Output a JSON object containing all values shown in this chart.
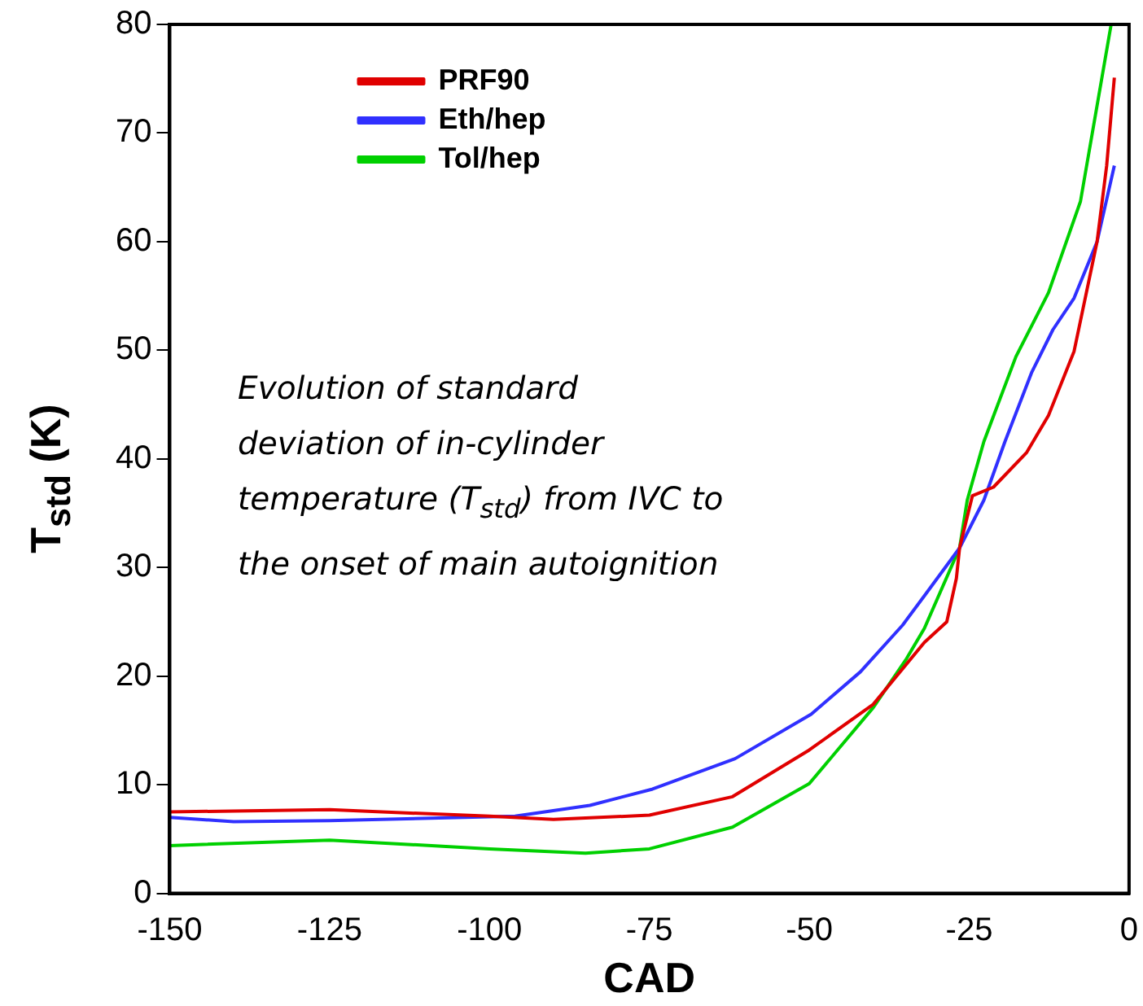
{
  "chart_data": {
    "type": "line",
    "xlabel": "CAD",
    "ylabel": "T$_{std}$ (K)",
    "xlim": [
      -150,
      0
    ],
    "xticks": [
      -150,
      -125,
      -100,
      -75,
      -50,
      -25,
      0
    ],
    "ylim": [
      0,
      80
    ],
    "yticks": [
      0,
      10,
      20,
      30,
      40,
      50,
      60,
      70,
      80
    ],
    "grid": false,
    "legend": "top left",
    "marker": "none",
    "line_style": "solid",
    "annotations": [
      "Evolution of standard deviation of in-cylinder temperature (T$_{std}$) from IVC to the onset of main autoignition"
    ],
    "series": [
      {
        "name": "PRF90",
        "color": "#e00000",
        "x": [
          -150,
          -125,
          -100,
          -90,
          -75,
          -62,
          -50,
          -40,
          -32,
          -28.5,
          -27,
          -26.5,
          -24.5,
          -21.2,
          -16,
          -12.6,
          -8.6,
          -5,
          -3.5,
          -2.3
        ],
        "values": [
          7.5,
          7.7,
          7.1,
          6.8,
          7.2,
          8.9,
          13.2,
          17.4,
          23.1,
          25,
          29,
          31.8,
          36.6,
          37.4,
          40.6,
          44,
          49.9,
          60,
          67,
          75.1
        ]
      },
      {
        "name": "Eth/hep",
        "color": "#3030ff",
        "x": [
          -150,
          -140,
          -125,
          -96,
          -84.3,
          -74.5,
          -61.6,
          -49.7,
          -42,
          -35.4,
          -32,
          -26.5,
          -22.7,
          -19.4,
          -15.2,
          -11.9,
          -8.6,
          -5,
          -2.3
        ],
        "values": [
          7,
          6.6,
          6.7,
          7.1,
          8.1,
          9.6,
          12.4,
          16.5,
          20.4,
          24.7,
          27.4,
          31.8,
          36.2,
          41.6,
          48,
          51.9,
          54.8,
          60,
          67
        ]
      },
      {
        "name": "Tol/hep",
        "color": "#00d000",
        "x": [
          -150,
          -125,
          -100,
          -85,
          -75,
          -62,
          -50,
          -40,
          -34.8,
          -32,
          -26.5,
          -25.3,
          -22.7,
          -17.7,
          -12.6,
          -7.6,
          -2.8
        ],
        "values": [
          4.4,
          4.9,
          4.1,
          3.7,
          4.1,
          6.1,
          10.1,
          17.1,
          21.6,
          24.4,
          31.8,
          36.2,
          41.6,
          49.4,
          55.3,
          63.7,
          80
        ]
      }
    ]
  }
}
